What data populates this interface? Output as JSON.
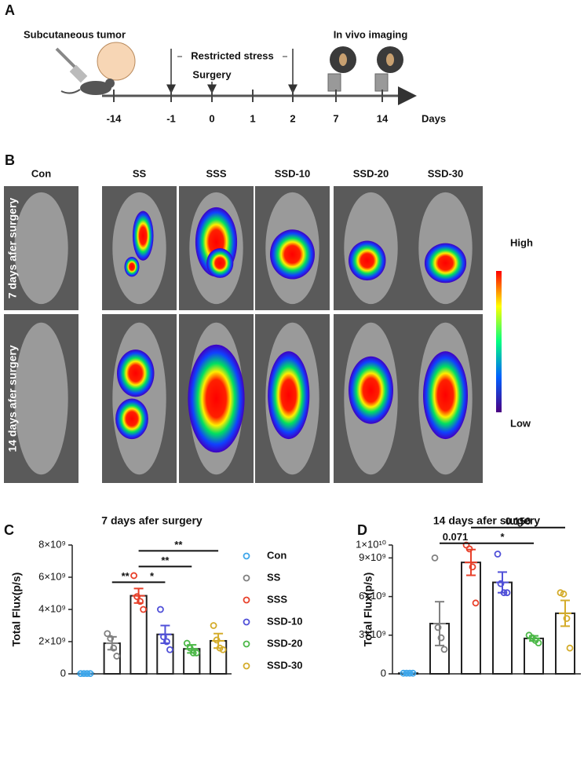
{
  "panel_a": {
    "letter": "A",
    "tumor_label": "Subcutaneous tumor",
    "stress_label": "Restricted stress",
    "surgery_label": "Surgery",
    "imaging_label": "In vivo imaging",
    "days": [
      "-14",
      "-1",
      "0",
      "1",
      "2",
      "7",
      "14"
    ],
    "days_label": "Days"
  },
  "panel_b": {
    "letter": "B",
    "columns": [
      "Con",
      "SS",
      "SSS",
      "SSD-10",
      "SSD-20",
      "SSD-30"
    ],
    "rows": [
      "7 days afer surgery",
      "14 days afer surgery"
    ],
    "scale_high": "High",
    "scale_low": "Low"
  },
  "chart_data": [
    {
      "type": "bar",
      "letter": "C",
      "title": "7 days afer surgery",
      "y_label": "Total Flux(p/s)",
      "categories": [
        "Con",
        "SS",
        "SSS",
        "SSD-10",
        "SSD-20",
        "SSD-30"
      ],
      "colors": [
        "#3ea6ea",
        "#808080",
        "#e8412b",
        "#5050d8",
        "#4cb848",
        "#d4ac2b"
      ],
      "values": [
        20000000.0,
        1900000000.0,
        4850000000.0,
        2450000000.0,
        1550000000.0,
        2050000000.0
      ],
      "errors": [
        10000000.0,
        400000000.0,
        450000000.0,
        550000000.0,
        250000000.0,
        450000000.0
      ],
      "points": [
        [
          20000000.0,
          20000000.0,
          20000000.0,
          20000000.0
        ],
        [
          2500000000.0,
          2200000000.0,
          1600000000.0,
          1100000000.0
        ],
        [
          6100000000.0,
          4800000000.0,
          4500000000.0,
          4000000000.0
        ],
        [
          4000000000.0,
          2300000000.0,
          2000000000.0,
          1500000000.0
        ],
        [
          1900000000.0,
          1600000000.0,
          1300000000.0,
          1300000000.0
        ],
        [
          3000000000.0,
          2100000000.0,
          1600000000.0,
          1500000000.0
        ]
      ],
      "ylim": [
        0,
        8000000000.0
      ],
      "yticks": [
        0,
        {
          "value": 2000000000.0,
          "label": "2×10⁹"
        },
        {
          "value": 4000000000.0,
          "label": "4×10⁹"
        },
        {
          "value": 6000000000.0,
          "label": "6×10⁹"
        },
        {
          "value": 8000000000.0,
          "label": "8×10⁹"
        }
      ],
      "annotations": [
        {
          "label": "**",
          "between": [
            "SS",
            "SSS"
          ]
        },
        {
          "label": "*",
          "between": [
            "SSS",
            "SSD-10"
          ]
        },
        {
          "label": "**",
          "between": [
            "SSS",
            "SSD-20"
          ]
        },
        {
          "label": "**",
          "between": [
            "SSS",
            "SSD-30"
          ]
        }
      ],
      "legend": "right"
    },
    {
      "type": "bar",
      "letter": "D",
      "title": "14 days afer surgery",
      "y_label": "Total Flux(p/s)",
      "categories": [
        "Con",
        "SS",
        "SSS",
        "SSD-10",
        "SSD-20",
        "SSD-30"
      ],
      "colors": [
        "#3ea6ea",
        "#808080",
        "#e8412b",
        "#5050d8",
        "#4cb848",
        "#d4ac2b"
      ],
      "values": [
        50000000.0,
        3900000000.0,
        8650000000.0,
        7100000000.0,
        2750000000.0,
        4700000000.0
      ],
      "errors": [
        20000000.0,
        1700000000.0,
        1000000000.0,
        800000000.0,
        200000000.0,
        1000000000.0
      ],
      "points": [
        [
          50000000.0,
          50000000.0,
          50000000.0,
          50000000.0
        ],
        [
          9000000000.0,
          3600000000.0,
          2800000000.0,
          1900000000.0
        ],
        [
          10000000000.0,
          9700000000.0,
          8300000000.0,
          5500000000.0
        ],
        [
          9300000000.0,
          7000000000.0,
          6300000000.0,
          6300000000.0
        ],
        [
          3000000000.0,
          2800000000.0,
          2600000000.0,
          2400000000.0
        ],
        [
          6300000000.0,
          6200000000.0,
          4300000000.0,
          2000000000.0
        ]
      ],
      "ylim": [
        0,
        10000000000.0
      ],
      "yticks": [
        0,
        {
          "value": 3000000000.0,
          "label": "3×10⁹"
        },
        {
          "value": 6000000000.0,
          "label": "6×10⁹"
        },
        {
          "value": 9000000000.0,
          "label": "9×10⁹"
        },
        {
          "value": 10000000000.0,
          "label": "1×10¹⁰"
        }
      ],
      "annotations": [
        {
          "label": "0.071",
          "between": [
            "SS",
            "SSS"
          ]
        },
        {
          "label": "*",
          "between": [
            "SSS",
            "SSD-20"
          ]
        },
        {
          "label": "0.150",
          "between": [
            "SSS",
            "SSD-30"
          ]
        }
      ]
    }
  ]
}
